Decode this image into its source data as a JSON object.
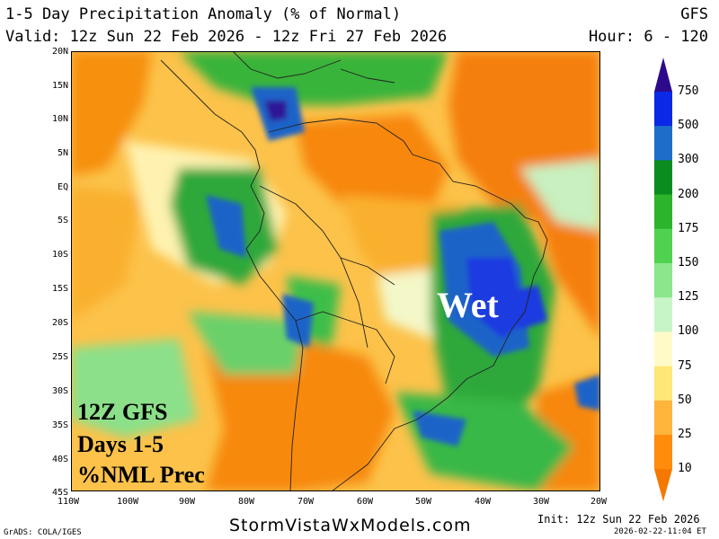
{
  "header": {
    "title": "1-5 Day Precipitation Anomaly (% of Normal)",
    "model": "GFS",
    "valid": "Valid: 12z Sun 22 Feb 2026 - 12z Fri 27 Feb 2026",
    "hour": "Hour: 6 - 120"
  },
  "map": {
    "lat_labels": [
      "20N",
      "15N",
      "10N",
      "5N",
      "EQ",
      "5S",
      "10S",
      "15S",
      "20S",
      "25S",
      "30S",
      "35S",
      "40S",
      "45S"
    ],
    "lon_labels": [
      "110W",
      "100W",
      "90W",
      "80W",
      "70W",
      "60W",
      "50W",
      "40W",
      "30W",
      "20W"
    ],
    "overlay": {
      "line1": "12Z GFS",
      "line2": "Days 1-5",
      "line3": "%NML Prec",
      "region_label": "Wet"
    }
  },
  "colorbar": {
    "levels": [
      "750",
      "500",
      "300",
      "200",
      "175",
      "150",
      "125",
      "100",
      "75",
      "50",
      "25",
      "10"
    ],
    "colors": [
      "#2d0a8a",
      "#0a28e6",
      "#1e6ec8",
      "#0a8c1e",
      "#2db42d",
      "#50d250",
      "#8ce68c",
      "#c8f5c8",
      "#fffac8",
      "#ffe678",
      "#ffb43c",
      "#ff8c0a",
      "#f57800"
    ]
  },
  "footer": {
    "site": "StormVistaWxModels.com",
    "init": "Init: 12z Sun 22 Feb 2026",
    "stamp": "2026-02-22-11:04 ET",
    "grads": "GrADS: COLA/IGES"
  }
}
